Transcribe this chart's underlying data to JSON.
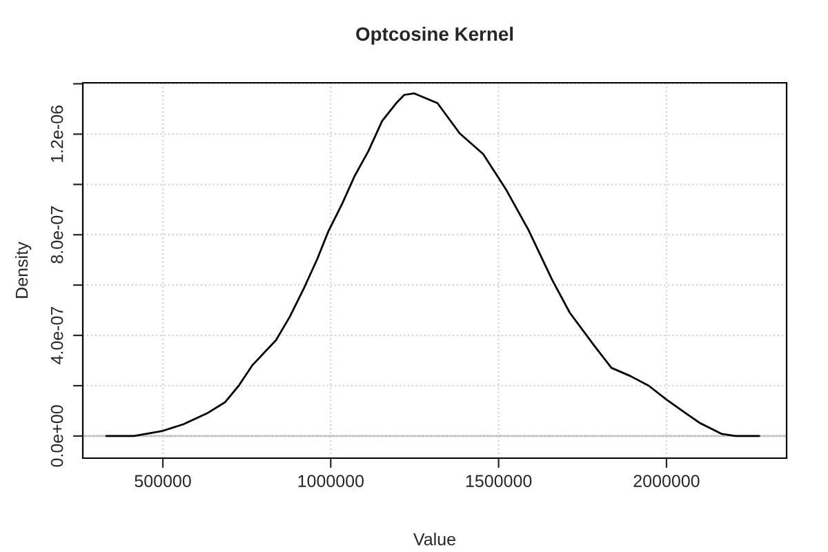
{
  "chart_data": {
    "type": "line",
    "title": "Optcosine Kernel",
    "xlabel": "Value",
    "ylabel": "Density",
    "x": [
      331500,
      413700,
      495900,
      561700,
      631500,
      685000,
      726000,
      767000,
      837000,
      878000,
      919000,
      960000,
      993000,
      1034000,
      1071000,
      1112000,
      1153000,
      1195000,
      1219000,
      1248000,
      1318000,
      1384000,
      1454000,
      1523000,
      1589000,
      1659000,
      1712000,
      1782000,
      1836000,
      1893000,
      1947000,
      2000000,
      2058000,
      2099000,
      2165000,
      2206000,
      2276000
    ],
    "series": [
      {
        "color": "#000000",
        "values": [
          0,
          0,
          1.9e-08,
          4.7e-08,
          9e-08,
          1.34e-07,
          2e-07,
          2.82e-07,
          3.81e-07,
          4.74e-07,
          5.84e-07,
          7.04e-07,
          8.14e-07,
          9.23e-07,
          1.033e-06,
          1.132e-06,
          1.252e-06,
          1.323e-06,
          1.356e-06,
          1.362e-06,
          1.323e-06,
          1.203e-06,
          1.121e-06,
          9.78e-07,
          8.19e-07,
          6.22e-07,
          4.9e-07,
          3.64e-07,
          2.71e-07,
          2.38e-07,
          2e-07,
          1.45e-07,
          9e-08,
          5.2e-08,
          8e-09,
          0,
          0
        ]
      }
    ],
    "xlim": [
      261600,
      2357700
    ],
    "ylim": [
      -8.8e-08,
      1.404e-06
    ],
    "xticks": [
      500000,
      1000000,
      1500000,
      2000000
    ],
    "yticks": [
      {
        "value": 0,
        "label": "0.0e+00"
      },
      {
        "value": 2e-07,
        "label": null
      },
      {
        "value": 4e-07,
        "label": "4.0e-07"
      },
      {
        "value": 6e-07,
        "label": null
      },
      {
        "value": 8e-07,
        "label": "8.0e-07"
      },
      {
        "value": 1e-06,
        "label": null
      },
      {
        "value": 1.2e-06,
        "label": "1.2e-06"
      },
      {
        "value": 1.4e-06,
        "label": null
      }
    ],
    "ref_lines": [
      {
        "axis": "y",
        "value": 0,
        "color": "#bebebe"
      }
    ],
    "grid": true,
    "marker": "none",
    "line_style": "solid"
  }
}
